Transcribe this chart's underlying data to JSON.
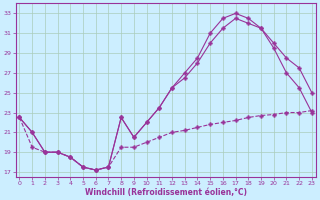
{
  "xlabel": "Windchill (Refroidissement éolien,°C)",
  "bg_color": "#cceeff",
  "line_color": "#993399",
  "grid_color": "#aaccbb",
  "yticks": [
    17,
    19,
    21,
    23,
    25,
    27,
    29,
    31,
    33
  ],
  "xticks": [
    0,
    1,
    2,
    3,
    4,
    5,
    6,
    7,
    8,
    9,
    10,
    11,
    12,
    13,
    14,
    15,
    16,
    17,
    18,
    19,
    20,
    21,
    22,
    23
  ],
  "series1_x": [
    0,
    1,
    2,
    3,
    4,
    5,
    6,
    7,
    8,
    9,
    10,
    11,
    12,
    13,
    14,
    15,
    16,
    17,
    18,
    19,
    20,
    21,
    22,
    23
  ],
  "series1_y": [
    22.5,
    21.0,
    19.0,
    19.0,
    18.5,
    17.5,
    17.2,
    17.5,
    22.5,
    20.5,
    22.0,
    23.5,
    25.5,
    26.5,
    28.0,
    30.0,
    31.5,
    32.5,
    32.0,
    31.5,
    30.0,
    28.5,
    27.5,
    25.0
  ],
  "series2_x": [
    0,
    1,
    2,
    3,
    4,
    5,
    6,
    7,
    8,
    9,
    10,
    11,
    12,
    13,
    14,
    15,
    16,
    17,
    18,
    19,
    20,
    21,
    22,
    23
  ],
  "series2_y": [
    22.5,
    21.0,
    19.0,
    19.0,
    18.5,
    17.5,
    17.2,
    17.5,
    22.5,
    20.5,
    22.0,
    23.5,
    25.5,
    27.0,
    28.5,
    31.0,
    32.5,
    33.0,
    32.5,
    31.5,
    29.5,
    27.0,
    25.5,
    23.0
  ],
  "series3_x": [
    0,
    1,
    2,
    3,
    4,
    5,
    6,
    7,
    8,
    9,
    10,
    11,
    12,
    13,
    14,
    15,
    16,
    17,
    18,
    19,
    20,
    21,
    22,
    23
  ],
  "series3_y": [
    22.5,
    19.5,
    19.0,
    19.0,
    18.5,
    17.5,
    17.2,
    17.5,
    19.5,
    19.5,
    20.0,
    20.5,
    21.0,
    21.2,
    21.5,
    21.8,
    22.0,
    22.2,
    22.5,
    22.7,
    22.8,
    23.0,
    23.0,
    23.2
  ]
}
